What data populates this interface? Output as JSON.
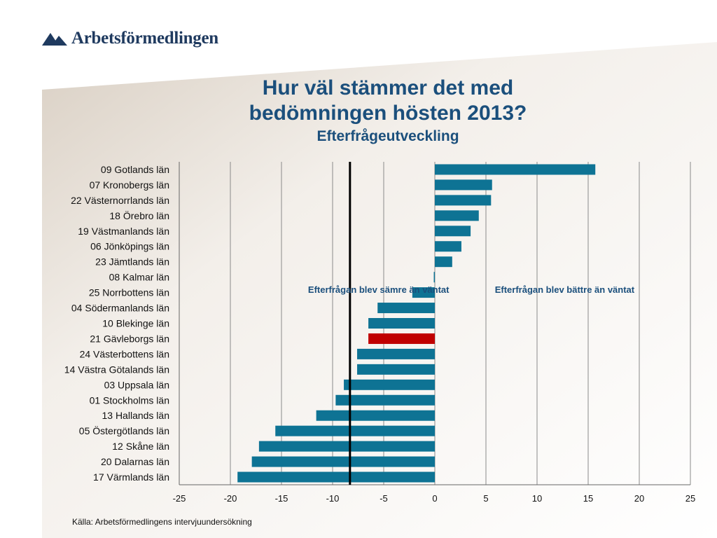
{
  "header": {
    "logo_text": "Arbetsförmedlingen",
    "title_line1": "Hur väl stämmer det med",
    "title_line2": "bedömningen hösten 2013?",
    "subtitle": "Efterfrågeutveckling"
  },
  "footer": {
    "source": "Källa: Arbetsförmedlingens intervjuundersökning"
  },
  "colors": {
    "bar": "#0e7394",
    "highlight": "#c00000",
    "reference_line": "#000000",
    "title": "#1b4f7c"
  },
  "chart_data": {
    "type": "bar",
    "orientation": "horizontal",
    "categories": [
      "09 Gotlands län",
      "07 Kronobergs län",
      "22 Västernorrlands län",
      "18 Örebro län",
      "19 Västmanlands län",
      "06 Jönköpings län",
      "23 Jämtlands län",
      "08 Kalmar län",
      "25 Norrbottens län",
      "04 Södermanlands län",
      "10 Blekinge län",
      "21 Gävleborgs län",
      "24 Västerbottens län",
      "14 Västra Götalands län",
      "03 Uppsala län",
      "01 Stockholms län",
      "13 Hallands län",
      "05 Östergötlands län",
      "12 Skåne län",
      "20 Dalarnas län",
      "17 Värmlands län"
    ],
    "values": [
      15.7,
      5.6,
      5.5,
      4.3,
      3.5,
      2.6,
      1.7,
      -0.1,
      -2.2,
      -5.6,
      -6.5,
      -6.5,
      -7.6,
      -7.6,
      -8.9,
      -9.7,
      -11.6,
      -15.6,
      -17.2,
      -17.9,
      -19.3
    ],
    "highlight_index": 11,
    "xlim": [
      -25,
      25
    ],
    "xticks": [
      -25,
      -20,
      -15,
      -10,
      -5,
      0,
      5,
      10,
      15,
      20,
      25
    ],
    "reference_line_x": -8.3,
    "grid": "vertical",
    "annotations": {
      "left": "Efterfrågan blev sämre än väntat",
      "right": "Efterfrågan blev bättre än väntat"
    },
    "title": "",
    "xlabel": "",
    "ylabel": ""
  }
}
